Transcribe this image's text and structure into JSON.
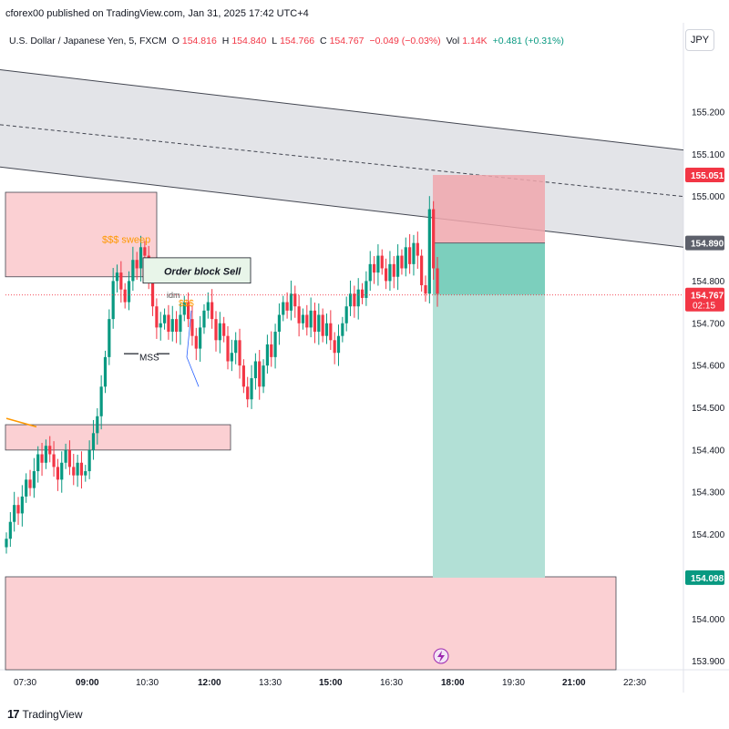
{
  "header": {
    "published": "cforex00 published on TradingView.com, Jan 31, 2025 17:42 UTC+4",
    "symbol": "U.S. Dollar / Japanese Yen, 5, FXCM",
    "o_label": "O",
    "o": "154.816",
    "h_label": "H",
    "h": "154.840",
    "l_label": "L",
    "l": "154.766",
    "c_label": "C",
    "c": "154.767",
    "change": "−0.049 (−0.03%)",
    "vol_label": "Vol",
    "vol": "1.14K",
    "vol_change": "+0.481 (+0.31%)",
    "currency": "JPY"
  },
  "footer": {
    "brand": "TradingView"
  },
  "colors": {
    "up": "#089981",
    "down": "#f23645",
    "zone": "#fbd0d3",
    "channel": "#d9dbe0",
    "target": "#b2e0d6",
    "stop": "#f0a7ad"
  },
  "chart_data": {
    "type": "candlestick",
    "ylim": [
      153.88,
      155.34
    ],
    "y_ticks": [
      "155.200",
      "155.100",
      "155.000",
      "154.800",
      "154.700",
      "154.600",
      "154.500",
      "154.400",
      "154.300",
      "154.200",
      "154.000",
      "153.900"
    ],
    "x_ticks": [
      "07:30",
      "09:00",
      "10:30",
      "12:00",
      "13:30",
      "15:00",
      "16:30",
      "18:00",
      "19:30",
      "21:00",
      "22:30"
    ],
    "price_labels": [
      {
        "price": "155.051",
        "value": 155.051,
        "color": "#f23645"
      },
      {
        "price": "154.890",
        "value": 154.89,
        "color": "#5d606b"
      },
      {
        "price": "154.767",
        "value": 154.767,
        "color": "#f23645",
        "countdown": "02:15"
      },
      {
        "price": "154.098",
        "value": 154.098,
        "color": "#089981"
      }
    ],
    "annotations": {
      "sweep": "$$$ sweep",
      "order_block": "Order block Sell",
      "mss": "MSS",
      "idm": "idm",
      "dollars": "$$$"
    },
    "position": {
      "entry": 154.89,
      "stop": 155.051,
      "target": 154.098,
      "current": 154.767
    },
    "closes": [
      154.19,
      154.23,
      154.27,
      154.25,
      154.29,
      154.33,
      154.31,
      154.35,
      154.39,
      154.37,
      154.41,
      154.39,
      154.36,
      154.33,
      154.37,
      154.4,
      154.36,
      154.34,
      154.37,
      154.34,
      154.35,
      154.4,
      154.44,
      154.48,
      154.55,
      154.62,
      154.71,
      154.8,
      154.82,
      154.78,
      154.75,
      154.8,
      154.85,
      154.83,
      154.88,
      154.86,
      154.8,
      154.74,
      154.69,
      154.7,
      154.72,
      154.68,
      154.71,
      154.68,
      154.72,
      154.75,
      154.71,
      154.67,
      154.64,
      154.69,
      154.73,
      154.75,
      154.71,
      154.66,
      154.7,
      154.67,
      154.61,
      154.63,
      154.66,
      154.6,
      154.55,
      154.52,
      154.57,
      154.61,
      154.55,
      154.6,
      154.65,
      154.62,
      154.68,
      154.72,
      154.75,
      154.73,
      154.77,
      154.74,
      154.7,
      154.72,
      154.69,
      154.73,
      154.68,
      154.72,
      154.67,
      154.7,
      154.66,
      154.63,
      154.67,
      154.7,
      154.74,
      154.77,
      154.74,
      154.78,
      154.76,
      154.8,
      154.84,
      154.82,
      154.86,
      154.83,
      154.8,
      154.84,
      154.81,
      154.86,
      154.83,
      154.88,
      154.84,
      154.89,
      154.86,
      154.79,
      154.77,
      154.97,
      154.83,
      154.77
    ],
    "channel": {
      "upper": [
        [
          0,
          155.3
        ],
        [
          750,
          155.11
        ]
      ],
      "lower": [
        [
          0,
          155.07
        ],
        [
          750,
          154.88
        ]
      ],
      "mid": [
        [
          0,
          155.17
        ],
        [
          750,
          155.0
        ]
      ]
    }
  }
}
